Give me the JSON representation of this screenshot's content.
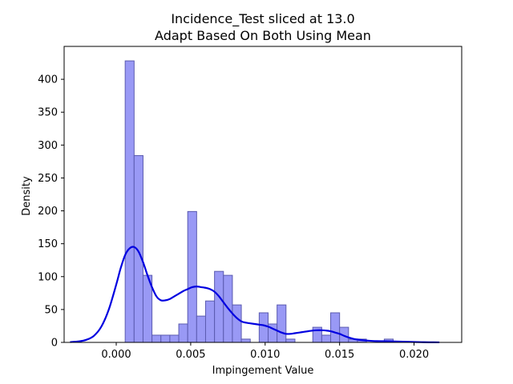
{
  "chart_data": {
    "type": "bar",
    "title_lines": [
      "Incidence_Test sliced at 13.0",
      "Adapt Based On Both   Using Mean"
    ],
    "xlabel": "Impingement Value",
    "ylabel": "Density",
    "xlim": [
      -0.0035,
      0.0232
    ],
    "ylim": [
      0,
      450
    ],
    "xticks": [
      0.0,
      0.005,
      0.01,
      0.015,
      0.02
    ],
    "xtick_labels": [
      "0.000",
      "0.005",
      "0.010",
      "0.015",
      "0.020"
    ],
    "yticks": [
      0,
      50,
      100,
      150,
      200,
      250,
      300,
      350,
      400
    ],
    "ytick_labels": [
      "0",
      "50",
      "100",
      "150",
      "200",
      "250",
      "300",
      "350",
      "400"
    ],
    "grid": false,
    "histogram": {
      "bin_width": 0.0006,
      "bin_starts": [
        0.0006,
        0.0012,
        0.0018,
        0.0024,
        0.003,
        0.0036,
        0.0042,
        0.0048,
        0.0054,
        0.006,
        0.0066,
        0.0072,
        0.0078,
        0.0084,
        0.009,
        0.0096,
        0.0102,
        0.0108,
        0.0114,
        0.012,
        0.0126,
        0.0132,
        0.0138,
        0.0144,
        0.015,
        0.0156,
        0.0162,
        0.0168,
        0.0174,
        0.018
      ],
      "values": [
        428,
        284,
        102,
        11,
        11,
        11,
        28,
        199,
        40,
        63,
        108,
        102,
        57,
        5,
        0,
        45,
        28,
        57,
        5,
        0,
        0,
        23,
        11,
        45,
        23,
        5,
        5,
        0,
        0,
        5
      ],
      "fill_color": "#9999f5",
      "edge_color": "#5b5bb0"
    },
    "kde": {
      "x": [
        -0.0031,
        -0.0025,
        -0.002,
        -0.0015,
        -0.001,
        -0.0005,
        0.0,
        0.0003,
        0.0006,
        0.0009,
        0.0012,
        0.0015,
        0.0018,
        0.0021,
        0.0024,
        0.0027,
        0.003,
        0.0033,
        0.0036,
        0.0039,
        0.0042,
        0.0045,
        0.0048,
        0.0051,
        0.0054,
        0.0057,
        0.006,
        0.0063,
        0.0066,
        0.0069,
        0.0072,
        0.0075,
        0.0078,
        0.0081,
        0.0084,
        0.0087,
        0.009,
        0.0093,
        0.0096,
        0.0099,
        0.0102,
        0.0105,
        0.0108,
        0.0111,
        0.0114,
        0.0117,
        0.012,
        0.0123,
        0.0126,
        0.0129,
        0.0132,
        0.0135,
        0.0138,
        0.0141,
        0.0144,
        0.0147,
        0.015,
        0.0153,
        0.0156,
        0.016,
        0.0165,
        0.017,
        0.0175,
        0.018,
        0.0185,
        0.019,
        0.0195,
        0.02,
        0.0205,
        0.021,
        0.0217
      ],
      "y": [
        0.5,
        1.5,
        4,
        10,
        24,
        50,
        88,
        113,
        133,
        143,
        145,
        138,
        122,
        102,
        84,
        70,
        64,
        64,
        66,
        70,
        74,
        78,
        81,
        84,
        85,
        84,
        83,
        81,
        77,
        70,
        61,
        52,
        44,
        37,
        32,
        30,
        29,
        28,
        27,
        26,
        24,
        21,
        18,
        15,
        13,
        13,
        14,
        15,
        16,
        17,
        18,
        18.5,
        18.5,
        18,
        17,
        15,
        13,
        10,
        7.5,
        5,
        3.5,
        2.5,
        2,
        1.8,
        1.5,
        1.2,
        0.9,
        0.6,
        0.4,
        0.2,
        0.1
      ],
      "color": "#0000e0"
    }
  }
}
